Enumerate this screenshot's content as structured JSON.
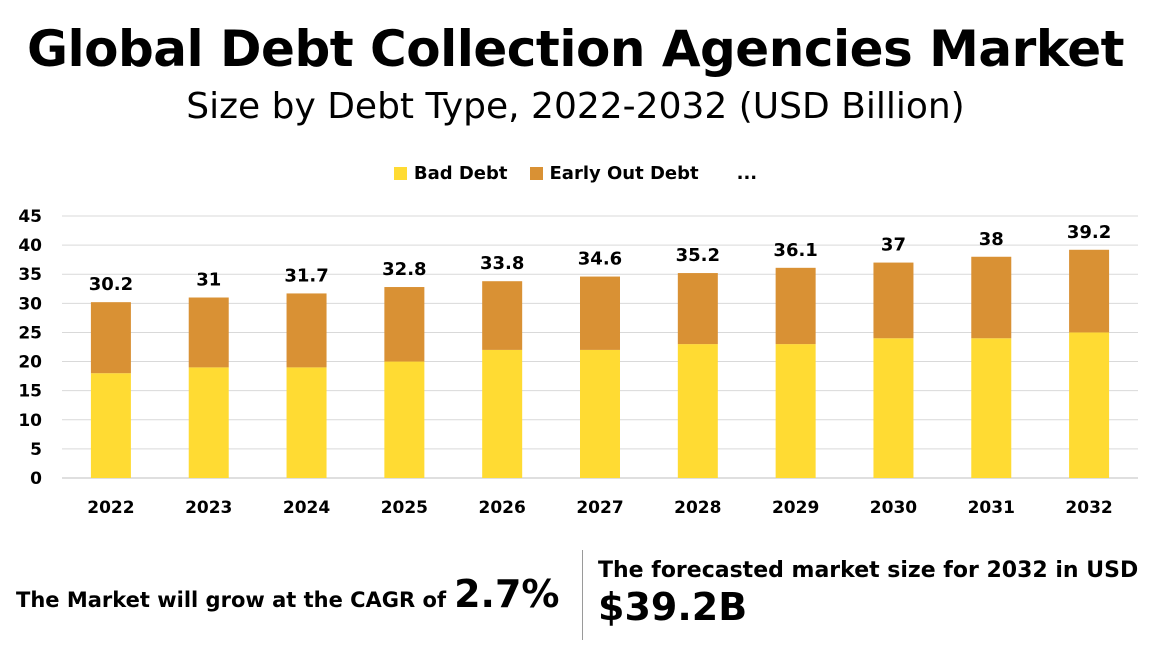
{
  "header": {
    "title": "Global Debt Collection Agencies Market",
    "subtitle": "Size by Debt Type, 2022-2032 (USD Billion)"
  },
  "legend": {
    "items": [
      {
        "label": "Bad Debt",
        "color": "#FFDB33"
      },
      {
        "label": "Early Out Debt",
        "color": "#D99134"
      }
    ],
    "more": "..."
  },
  "chart_data": {
    "type": "bar",
    "stacked": true,
    "categories": [
      "2022",
      "2023",
      "2024",
      "2025",
      "2026",
      "2027",
      "2028",
      "2029",
      "2030",
      "2031",
      "2032"
    ],
    "series": [
      {
        "name": "Bad Debt",
        "color": "#FFDB33",
        "values": [
          18,
          19,
          19,
          20,
          22,
          22,
          23,
          23,
          24,
          24,
          25
        ]
      },
      {
        "name": "Early Out Debt",
        "color": "#D99134",
        "values": [
          12.2,
          12,
          12.7,
          12.8,
          11.8,
          12.6,
          12.2,
          13.1,
          13,
          14,
          14.2
        ]
      }
    ],
    "totals": [
      "30.2",
      "31",
      "31.7",
      "32.8",
      "33.8",
      "34.6",
      "35.2",
      "36.1",
      "37",
      "38",
      "39.2"
    ],
    "yticks": [
      "0",
      "5",
      "10",
      "15",
      "20",
      "25",
      "30",
      "35",
      "40",
      "45"
    ],
    "ylim": [
      0,
      45
    ],
    "grid": true,
    "legend_position": "top"
  },
  "footer": {
    "cagr_text": "The Market will grow at the CAGR of",
    "cagr_value": "2.7%",
    "forecast_text": "The forecasted market size for 2032 in USD",
    "forecast_value": "$39.2B"
  }
}
